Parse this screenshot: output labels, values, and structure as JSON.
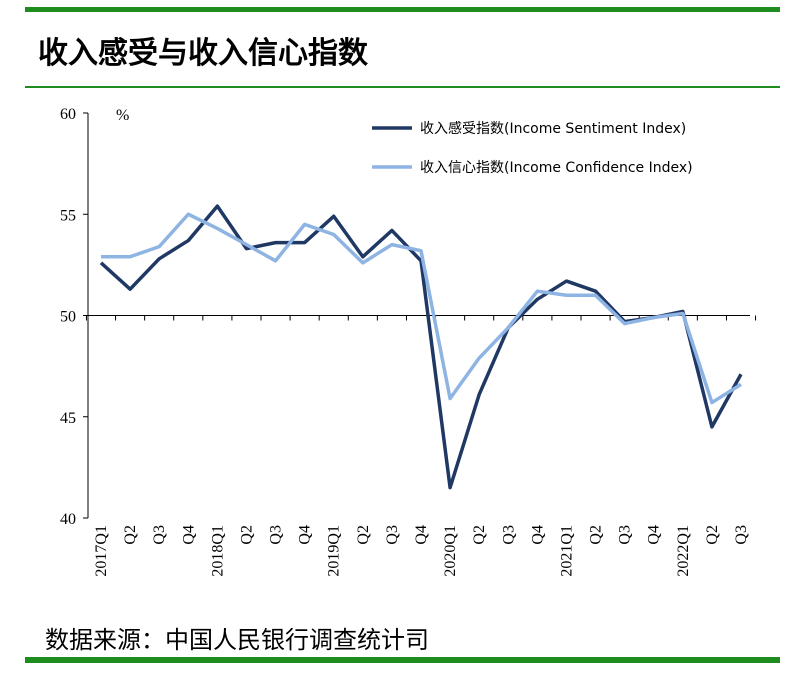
{
  "chart_data": {
    "type": "line",
    "title": "收入感受与收入信心指数",
    "y_unit": "%",
    "source": "数据来源：中国人民银行调查统计司",
    "categories": [
      "2017Q1",
      "Q2",
      "Q3",
      "Q4",
      "2018Q1",
      "Q2",
      "Q3",
      "Q4",
      "2019Q1",
      "Q2",
      "Q3",
      "Q4",
      "2020Q1",
      "Q2",
      "Q3",
      "Q4",
      "2021Q1",
      "Q2",
      "Q3",
      "Q4",
      "2022Q1",
      "Q2",
      "Q3"
    ],
    "series": [
      {
        "name": "收入感受指数(Income Sentiment Index)",
        "color": "#1f3864",
        "values": [
          52.6,
          51.3,
          52.8,
          53.7,
          55.4,
          53.3,
          53.6,
          53.6,
          54.9,
          52.9,
          54.2,
          52.7,
          41.5,
          46.1,
          49.4,
          50.8,
          51.7,
          51.2,
          49.7,
          49.9,
          50.2,
          44.5,
          47.1
        ]
      },
      {
        "name": "收入信心指数(Income Confidence Index)",
        "color": "#8eb4e3",
        "values": [
          52.9,
          52.9,
          53.4,
          55.0,
          54.3,
          53.5,
          52.7,
          54.5,
          54.0,
          52.6,
          53.5,
          53.2,
          45.9,
          47.9,
          49.4,
          51.2,
          51.0,
          51.0,
          49.6,
          49.9,
          50.1,
          45.7,
          46.6
        ]
      }
    ],
    "ylim": [
      40,
      60
    ],
    "yticks": [
      40,
      45,
      50,
      55,
      60
    ],
    "x_axis_crosses": 50,
    "legend": "upper right"
  }
}
